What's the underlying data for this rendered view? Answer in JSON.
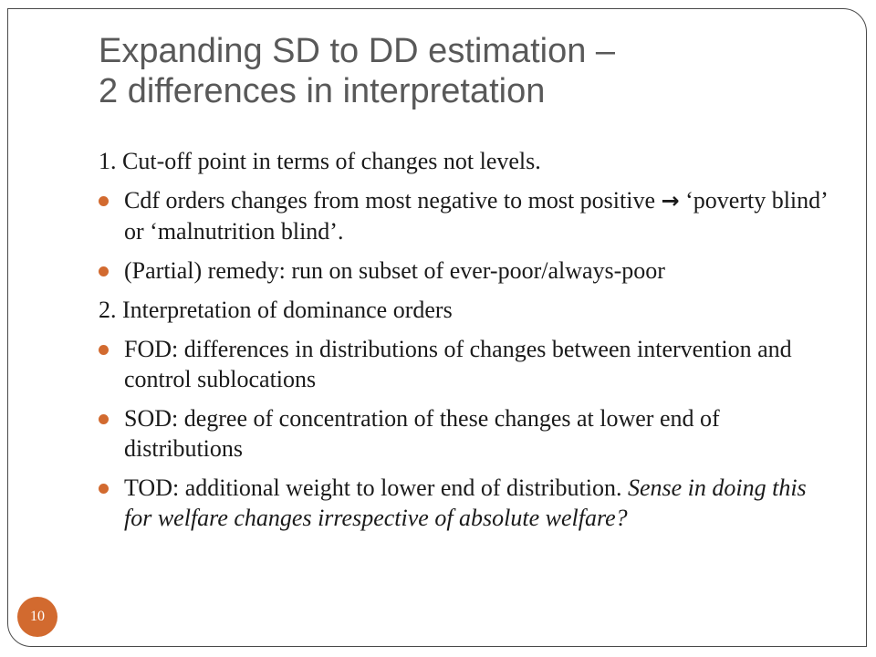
{
  "slide": {
    "title_line1": "Expanding SD to DD estimation –",
    "title_line2": "2 differences in interpretation",
    "page_number": "10",
    "accent_color": "#d26a2f"
  },
  "content": {
    "point1": "1. Cut-off point in terms of changes not levels.",
    "point1_bullet1_a": "Cdf orders changes from most negative to most positive ",
    "point1_bullet1_arrow": "→",
    "point1_bullet1_b": " ‘poverty blind’ or ‘malnutrition blind’.",
    "point1_bullet2": "(Partial) remedy: run on subset of ever-poor/always-poor",
    "point2": "2. Interpretation of dominance orders",
    "point2_bullet1": "FOD: differences in distributions of changes between intervention and control sublocations",
    "point2_bullet2": "SOD: degree of concentration of these changes at lower end of distributions",
    "point2_bullet3_a": "TOD: additional weight to lower end of distribution. ",
    "point2_bullet3_italic": "Sense in doing this for welfare changes irrespective of absolute welfare?"
  }
}
